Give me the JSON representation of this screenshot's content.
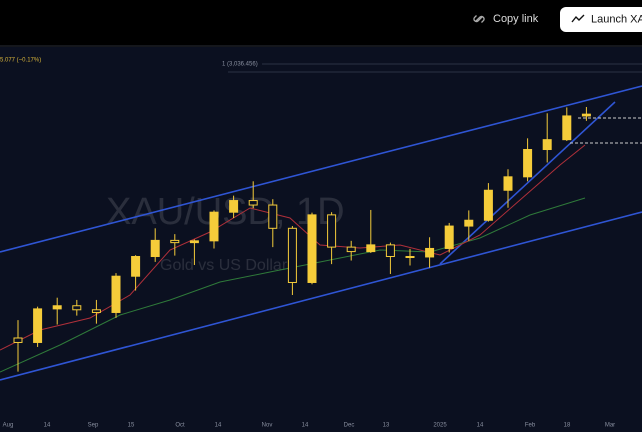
{
  "toolbar": {
    "copy_link": "Copy link",
    "launch": "Launch XA"
  },
  "legend_text": "5.077 (−0.17%)",
  "level_label": "1 (3,036.456)",
  "watermark": {
    "symbol": "XAU/USD, 1D",
    "description": "Gold vs US Dollar"
  },
  "x_labels": [
    "Aug",
    "14",
    "Sep",
    "15",
    "Oct",
    "14",
    "Nov",
    "14",
    "Dec",
    "13",
    "2025",
    "14",
    "Feb",
    "18",
    "Mar"
  ],
  "chart_data": {
    "type": "candlestick",
    "ylim": [
      2230,
      3090
    ],
    "up_color": "#f5cc3a",
    "down_color": "#f5cc3a",
    "open": [
      2440,
      2430,
      2505,
      2512,
      2503,
      2497,
      2578,
      2622,
      2658,
      2653,
      2657,
      2721,
      2747,
      2737,
      2685,
      2564,
      2715,
      2643,
      2633,
      2648,
      2622,
      2621,
      2640,
      2690,
      2703,
      2770,
      2800,
      2861,
      2883,
      2936
    ],
    "high": [
      2480,
      2510,
      2530,
      2525,
      2525,
      2585,
      2625,
      2685,
      2672,
      2660,
      2725,
      2758,
      2790,
      2750,
      2690,
      2720,
      2721,
      2657,
      2726,
      2653,
      2639,
      2665,
      2697,
      2725,
      2786,
      2817,
      2886,
      2942,
      2955,
      2956
    ],
    "low": [
      2365,
      2420,
      2470,
      2490,
      2472,
      2485,
      2546,
      2610,
      2624,
      2603,
      2640,
      2708,
      2730,
      2643,
      2536,
      2560,
      2605,
      2613,
      2630,
      2583,
      2602,
      2597,
      2631,
      2657,
      2700,
      2731,
      2790,
      2832,
      2880,
      2925
    ],
    "close": [
      2430,
      2505,
      2512,
      2503,
      2497,
      2578,
      2622,
      2658,
      2653,
      2657,
      2721,
      2747,
      2737,
      2685,
      2564,
      2715,
      2643,
      2633,
      2648,
      2622,
      2621,
      2640,
      2690,
      2703,
      2770,
      2800,
      2861,
      2883,
      2936,
      2940
    ]
  }
}
